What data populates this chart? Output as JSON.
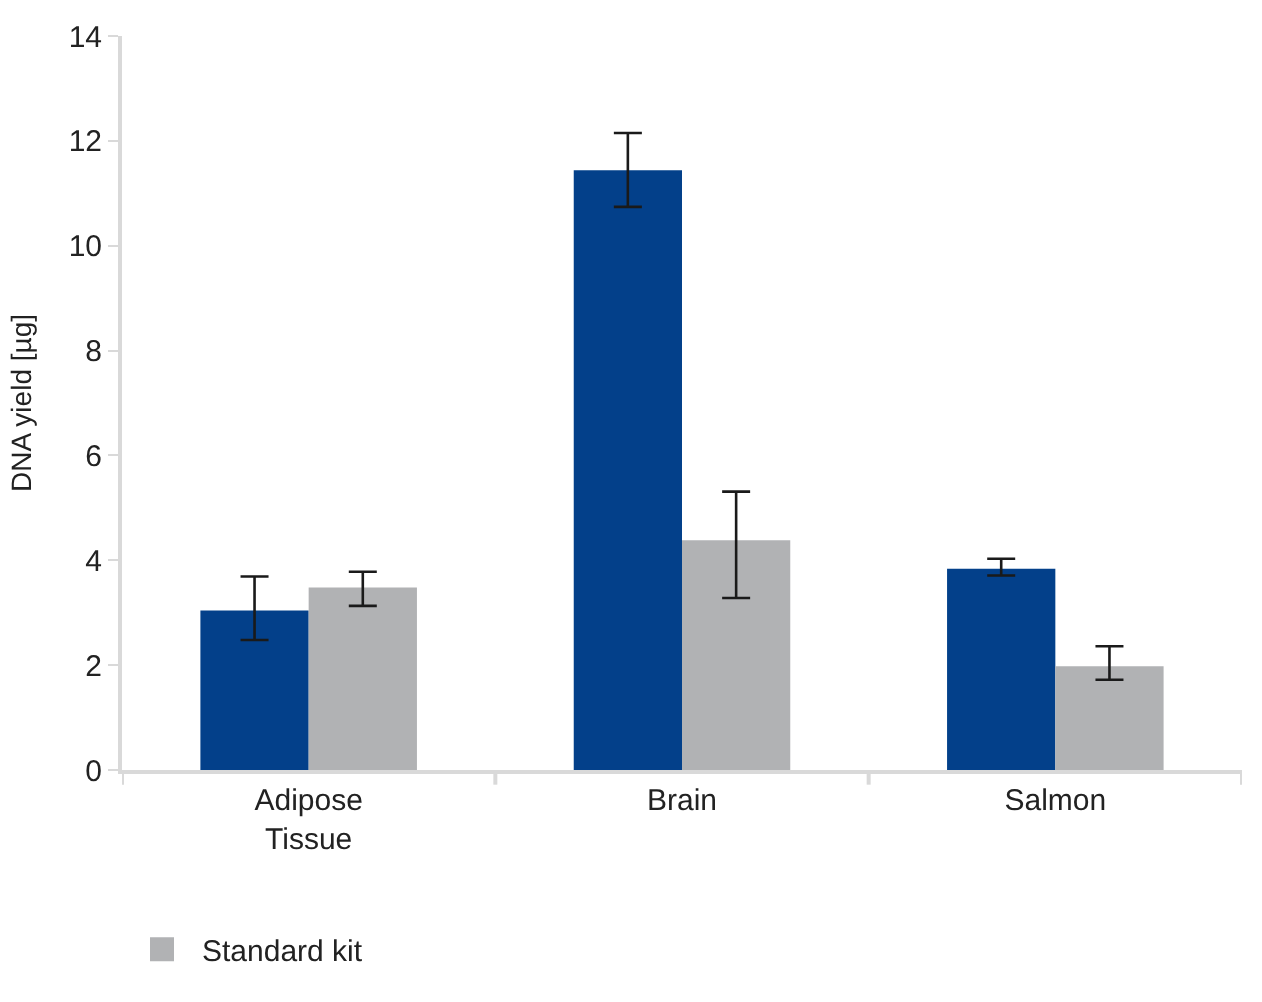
{
  "chart_data": {
    "type": "bar",
    "ylabel": "DNA yield [µg]",
    "categories": [
      "Adipose Tissue",
      "Brain",
      "Salmon"
    ],
    "series": [
      {
        "color": "#03408a",
        "values": [
          3.04,
          11.44,
          3.84
        ],
        "errors": [
          [
            2.48,
            3.69
          ],
          [
            10.74,
            12.15
          ],
          [
            3.71,
            4.03
          ]
        ]
      },
      {
        "name": "Standard kit",
        "color": "#b1b2b4",
        "values": [
          3.48,
          4.38,
          1.98
        ],
        "errors": [
          [
            3.13,
            3.78
          ],
          [
            3.28,
            5.31
          ],
          [
            1.72,
            2.36
          ]
        ]
      }
    ],
    "ylim": [
      0,
      14
    ],
    "yticks": [
      0,
      2,
      4,
      6,
      8,
      10,
      12,
      14
    ],
    "legend": "bottom"
  }
}
